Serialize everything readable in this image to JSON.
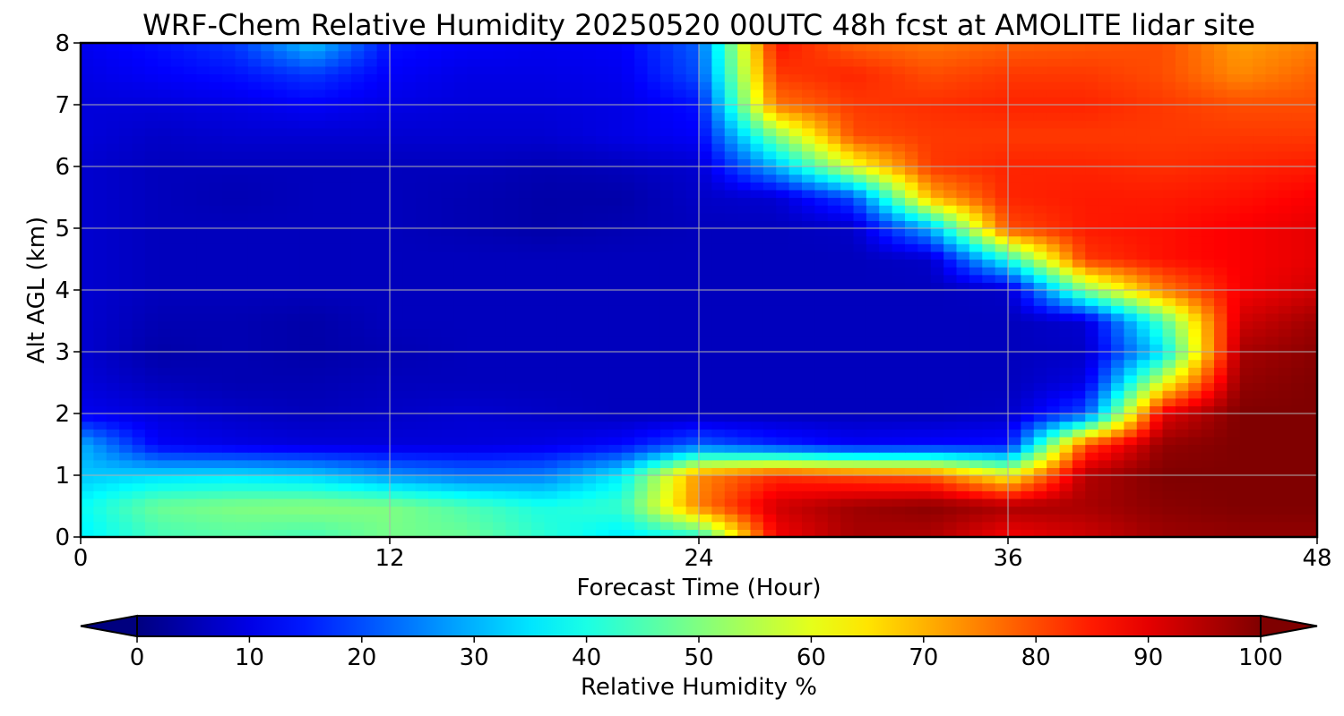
{
  "chart_data": {
    "type": "heatmap",
    "title": "WRF-Chem Relative Humidity 20250520 00UTC 48h fcst at AMOLITE lidar site",
    "xlabel": "Forecast Time (Hour)",
    "ylabel": "Alt AGL (km)",
    "xlim": [
      0,
      48
    ],
    "ylim": [
      0,
      8
    ],
    "x_ticks": [
      "0",
      "12",
      "24",
      "36",
      "48"
    ],
    "y_ticks": [
      "0",
      "1",
      "2",
      "3",
      "4",
      "5",
      "6",
      "7",
      "8"
    ],
    "grid": true,
    "colormap": "jet",
    "colorbar": {
      "label": "Relative Humidity %",
      "min": 0,
      "max": 100,
      "ticks": [
        "0",
        "10",
        "20",
        "30",
        "40",
        "50",
        "60",
        "70",
        "80",
        "90",
        "100"
      ],
      "extend": "both",
      "orientation": "horizontal"
    },
    "x": [
      0,
      3,
      6,
      9,
      12,
      15,
      18,
      21,
      24,
      27,
      30,
      33,
      36,
      39,
      42,
      45,
      48
    ],
    "y": [
      0,
      0.5,
      1,
      1.5,
      2,
      2.5,
      3,
      3.5,
      4,
      4.5,
      5,
      5.5,
      6,
      6.5,
      7,
      7.5,
      8
    ],
    "z": [
      [
        36,
        44,
        46,
        44,
        49,
        48,
        42,
        35,
        40,
        88,
        96,
        95,
        88,
        92,
        97,
        98,
        98
      ],
      [
        38,
        48,
        50,
        51,
        50,
        45,
        40,
        43,
        75,
        92,
        97,
        99,
        96,
        96,
        99,
        100,
        100
      ],
      [
        32,
        34,
        35,
        33,
        27,
        24,
        25,
        36,
        74,
        83,
        80,
        78,
        62,
        95,
        100,
        100,
        100
      ],
      [
        30,
        12,
        10,
        9,
        9,
        9,
        10,
        13,
        22,
        16,
        12,
        13,
        14,
        80,
        98,
        100,
        100
      ],
      [
        11,
        9,
        7,
        6,
        7,
        8,
        7,
        6,
        6,
        6,
        6,
        6,
        7,
        20,
        90,
        100,
        100
      ],
      [
        9,
        6,
        5,
        5,
        6,
        6,
        6,
        6,
        6,
        6,
        6,
        6,
        6,
        10,
        60,
        98,
        100
      ],
      [
        8,
        4,
        5,
        4,
        5,
        6,
        6,
        6,
        6,
        6,
        6,
        6,
        6,
        7,
        35,
        96,
        99
      ],
      [
        8,
        5,
        5,
        4,
        6,
        6,
        6,
        6,
        6,
        6,
        6,
        6,
        6,
        8,
        45,
        92,
        97
      ],
      [
        8,
        6,
        6,
        6,
        6,
        6,
        6,
        6,
        6,
        6,
        6,
        6,
        7,
        50,
        75,
        88,
        92
      ],
      [
        8,
        6,
        6,
        6,
        6,
        6,
        6,
        6,
        6,
        6,
        6,
        7,
        40,
        82,
        86,
        88,
        90
      ],
      [
        8,
        6,
        6,
        6,
        6,
        5,
        4,
        5,
        6,
        6,
        7,
        30,
        80,
        85,
        86,
        88,
        90
      ],
      [
        8,
        6,
        5,
        6,
        6,
        5,
        4,
        4,
        7,
        8,
        20,
        70,
        84,
        85,
        85,
        86,
        88
      ],
      [
        8,
        6,
        6,
        6,
        6,
        6,
        5,
        6,
        8,
        30,
        60,
        82,
        84,
        84,
        83,
        84,
        85
      ],
      [
        9,
        7,
        8,
        8,
        8,
        8,
        8,
        10,
        12,
        50,
        80,
        82,
        82,
        82,
        82,
        82,
        82
      ],
      [
        9,
        9,
        10,
        12,
        10,
        9,
        9,
        10,
        14,
        76,
        82,
        83,
        84,
        84,
        82,
        80,
        80
      ],
      [
        10,
        12,
        14,
        18,
        12,
        10,
        10,
        11,
        20,
        82,
        84,
        80,
        82,
        82,
        80,
        74,
        78
      ],
      [
        11,
        14,
        18,
        32,
        14,
        12,
        11,
        12,
        22,
        86,
        78,
        76,
        78,
        79,
        80,
        72,
        75
      ]
    ]
  }
}
